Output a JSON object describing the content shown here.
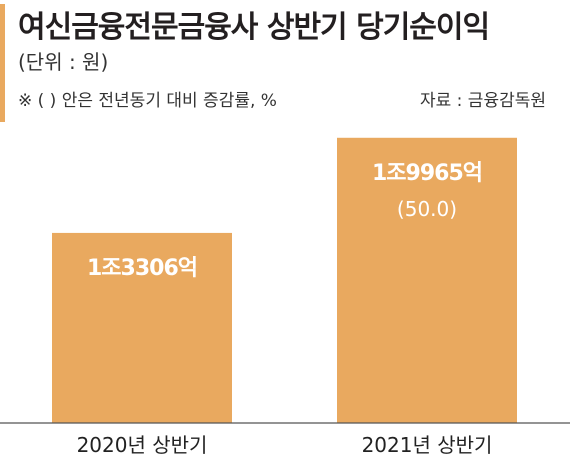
{
  "header": {
    "title": "여신금융전문금융사 상반기 당기순이익",
    "unit": "(단위 : 원)",
    "note": "※ (   ) 안은 전년동기 대비 증감률, %",
    "source": "자료 : 금융감독원"
  },
  "colors": {
    "bar": "#e9a95f",
    "accent": "#e9a95f"
  },
  "chart_data": {
    "type": "bar",
    "title": "여신금융전문금융사 상반기 당기순이익",
    "unit": "원",
    "categories": [
      "2020년 상반기",
      "2021년 상반기"
    ],
    "values": [
      13306,
      19965
    ],
    "value_unit": "억",
    "data_labels": [
      "1조3306억",
      "1조9965억"
    ],
    "change_labels": [
      "",
      "(50.0)"
    ],
    "change_pct": [
      null,
      50.0
    ],
    "ylim": [
      0,
      21000
    ],
    "grid": false,
    "legend": "none"
  }
}
